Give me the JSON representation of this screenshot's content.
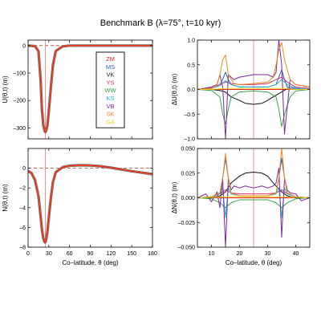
{
  "figure": {
    "title": "Benchmark B (λ=75°, t=10 kyr)"
  },
  "legend": [
    {
      "label": "ZM",
      "color": "#e8262a"
    },
    {
      "label": "MS",
      "color": "#2c5dbf"
    },
    {
      "label": "VK",
      "color": "#111111"
    },
    {
      "label": "YS",
      "color": "#d1306f"
    },
    {
      "label": "WW",
      "color": "#3aa34a"
    },
    {
      "label": "KS",
      "color": "#28b4d0"
    },
    {
      "label": "VB",
      "color": "#7a2a96"
    },
    {
      "label": "SK",
      "color": "#f08a1c"
    },
    {
      "label": "GA",
      "color": "#e8d21e"
    }
  ],
  "chart_data": [
    {
      "type": "line",
      "panel": "top-left",
      "xlabel": "",
      "ylabel": "U(θ,t) (m)",
      "xlim": [
        0,
        180
      ],
      "ylim": [
        -340,
        20
      ],
      "xticks": [
        0,
        30,
        60,
        90,
        120,
        150,
        180
      ],
      "yticks": [
        0,
        -100,
        -200,
        -300
      ],
      "xtick_labels_visible": false,
      "marker_line_x": 25,
      "zero_line": true,
      "series": [
        {
          "x": [
            0,
            10,
            15,
            18,
            20,
            22,
            24,
            25,
            26,
            28,
            30,
            33,
            36,
            40,
            50,
            60,
            90,
            120,
            150,
            180
          ],
          "y": [
            0,
            -2,
            -20,
            -120,
            -230,
            -290,
            -312,
            -315,
            -312,
            -290,
            -240,
            -150,
            -70,
            -20,
            -3,
            0,
            0,
            0,
            0,
            0
          ]
        }
      ]
    },
    {
      "type": "line",
      "panel": "bottom-left",
      "xlabel": "Co–latitude, θ (deg)",
      "ylabel": "N(θ,t) (m)",
      "xlim": [
        0,
        180
      ],
      "ylim": [
        -8,
        2
      ],
      "xticks": [
        0,
        30,
        60,
        90,
        120,
        150,
        180
      ],
      "yticks": [
        0,
        -2,
        -4,
        -6,
        -8
      ],
      "marker_line_x": 25,
      "zero_line": true,
      "series": [
        {
          "x": [
            0,
            5,
            10,
            15,
            18,
            20,
            22,
            24,
            25,
            26,
            28,
            30,
            33,
            36,
            40,
            50,
            60,
            75,
            90,
            105,
            120,
            150,
            180
          ],
          "y": [
            -0.3,
            -0.5,
            -1.2,
            -2.8,
            -4.8,
            -6.2,
            -7.1,
            -7.5,
            -7.5,
            -7.3,
            -6.4,
            -5.0,
            -3.0,
            -1.4,
            -0.4,
            0.1,
            0.25,
            0.3,
            0.28,
            0.2,
            0.05,
            -0.3,
            -0.6
          ]
        }
      ]
    },
    {
      "type": "line",
      "panel": "top-right",
      "xlabel": "",
      "ylabel": "ΔU(θ,t) (m)",
      "xlim": [
        5,
        45
      ],
      "ylim": [
        -1.0,
        1.0
      ],
      "xticks": [
        10,
        20,
        30,
        40
      ],
      "yticks": [
        1.0,
        0.5,
        0.0,
        -0.5,
        -1.0
      ],
      "xtick_labels_visible": false,
      "marker_line_x": 25,
      "series": [
        {
          "name": "ZM",
          "x": [
            5,
            12,
            15,
            20,
            25,
            30,
            35,
            40,
            45
          ],
          "y": [
            0,
            0,
            0,
            0,
            0,
            0,
            0,
            0,
            0
          ]
        },
        {
          "name": "MS",
          "x": [
            5,
            10,
            13,
            14,
            15,
            16,
            17,
            20,
            25,
            30,
            33,
            34,
            35,
            36,
            37,
            40,
            45
          ],
          "y": [
            0,
            0.02,
            0.1,
            0.2,
            0.35,
            0.2,
            0.1,
            0.05,
            0.05,
            0.05,
            0.1,
            0.25,
            0.4,
            0.2,
            0.05,
            0.02,
            0
          ]
        },
        {
          "name": "VK",
          "x": [
            5,
            10,
            13,
            15,
            17,
            20,
            22,
            25,
            28,
            30,
            32,
            35,
            37,
            40,
            45
          ],
          "y": [
            0,
            0,
            -0.02,
            -0.05,
            -0.15,
            -0.22,
            -0.28,
            -0.3,
            -0.28,
            -0.22,
            -0.15,
            -0.05,
            0.02,
            0,
            0
          ]
        },
        {
          "name": "YS",
          "x": [
            5,
            10,
            13,
            15,
            17,
            20,
            25,
            30,
            33,
            35,
            37,
            40,
            45
          ],
          "y": [
            0,
            0.03,
            0.1,
            0.15,
            0.12,
            0.1,
            0.1,
            0.12,
            0.2,
            0.25,
            0.15,
            0.05,
            0.02
          ]
        },
        {
          "name": "WW",
          "x": [
            5,
            10,
            13,
            14,
            15,
            16,
            17,
            20,
            25,
            30,
            33,
            34,
            35,
            36,
            38,
            40,
            45
          ],
          "y": [
            0,
            -0.02,
            -0.15,
            -0.5,
            -0.7,
            -0.4,
            -0.15,
            -0.05,
            -0.03,
            -0.05,
            -0.15,
            -0.4,
            -0.75,
            -0.5,
            -0.15,
            -0.03,
            0
          ]
        },
        {
          "name": "KS",
          "x": [
            5,
            10,
            13,
            15,
            17,
            20,
            25,
            30,
            33,
            35,
            37,
            40,
            45
          ],
          "y": [
            0,
            0.02,
            0.08,
            0.18,
            0.1,
            0.05,
            0.05,
            0.05,
            0.1,
            0.2,
            0.1,
            0.03,
            0
          ]
        },
        {
          "name": "VB",
          "x": [
            5,
            10,
            12,
            13,
            14,
            15,
            16,
            18,
            20,
            25,
            30,
            32,
            33,
            34,
            35,
            36,
            38,
            40,
            45
          ],
          "y": [
            0,
            0.05,
            0.1,
            0.3,
            0.05,
            -1.0,
            0.3,
            0.2,
            0.25,
            0.3,
            0.3,
            0.25,
            0.35,
            1.0,
            0.5,
            -0.9,
            0.2,
            0.1,
            0.05
          ]
        },
        {
          "name": "SK",
          "x": [
            5,
            10,
            12,
            13,
            14,
            15,
            16,
            18,
            20,
            25,
            30,
            32,
            33,
            34,
            35,
            36,
            38,
            40,
            45
          ],
          "y": [
            0,
            0.02,
            0.08,
            0.3,
            0.6,
            0.7,
            0.3,
            0.12,
            0.1,
            0.12,
            0.15,
            0.25,
            0.5,
            0.8,
            0.95,
            0.6,
            0.2,
            0.1,
            0.05
          ]
        },
        {
          "name": "GA",
          "x": [
            5,
            10,
            15,
            20,
            25,
            30,
            35,
            40,
            45
          ],
          "y": [
            0,
            0,
            0.02,
            0.02,
            0.02,
            0.02,
            0.02,
            0,
            0
          ]
        }
      ]
    },
    {
      "type": "line",
      "panel": "bottom-right",
      "xlabel": "Co–latitude, θ (deg)",
      "ylabel": "ΔN(θ,t) (m)",
      "xlim": [
        5,
        45
      ],
      "ylim": [
        -0.05,
        0.05
      ],
      "xticks": [
        10,
        20,
        30,
        40
      ],
      "yticks": [
        0.05,
        0.025,
        0.0,
        -0.025,
        -0.05
      ],
      "ytick_labels": [
        "0.050",
        "0.025",
        "0.000",
        "–0.025",
        "–0.050"
      ],
      "marker_line_x": 25,
      "series": [
        {
          "name": "ZM",
          "x": [
            5,
            15,
            25,
            35,
            45
          ],
          "y": [
            0,
            0,
            0,
            0,
            0
          ]
        },
        {
          "name": "MS",
          "x": [
            5,
            10,
            13,
            14,
            15,
            16,
            17,
            20,
            25,
            30,
            33,
            34,
            35,
            36,
            37,
            40,
            45
          ],
          "y": [
            0,
            0.001,
            0.005,
            0.02,
            0.04,
            0.02,
            0.005,
            0.002,
            0.002,
            0.002,
            0.005,
            0.02,
            0.04,
            0.02,
            0.005,
            0.001,
            0
          ]
        },
        {
          "name": "VK",
          "x": [
            5,
            10,
            13,
            15,
            17,
            20,
            22,
            25,
            28,
            30,
            32,
            35,
            37,
            40,
            45
          ],
          "y": [
            0,
            0,
            0.002,
            0.006,
            0.015,
            0.022,
            0.025,
            0.026,
            0.025,
            0.022,
            0.015,
            0.006,
            0.002,
            0,
            0
          ]
        },
        {
          "name": "YS",
          "x": [
            5,
            10,
            13,
            15,
            17,
            20,
            25,
            30,
            33,
            35,
            37,
            40,
            45
          ],
          "y": [
            0,
            0.001,
            0.004,
            0.008,
            0.005,
            0.004,
            0.004,
            0.004,
            0.005,
            0.008,
            0.004,
            0.001,
            0
          ]
        },
        {
          "name": "WW",
          "x": [
            5,
            10,
            13,
            15,
            17,
            20,
            25,
            30,
            33,
            35,
            37,
            40,
            45
          ],
          "y": [
            0,
            -0.001,
            -0.005,
            -0.01,
            -0.005,
            -0.002,
            -0.002,
            -0.002,
            -0.005,
            -0.01,
            -0.005,
            -0.001,
            0
          ]
        },
        {
          "name": "KS",
          "x": [
            5,
            10,
            13,
            14,
            15,
            16,
            17,
            20,
            25,
            30,
            33,
            34,
            35,
            36,
            37,
            40,
            45
          ],
          "y": [
            0,
            0.001,
            0.004,
            0.01,
            -0.02,
            0.01,
            0.004,
            0.002,
            0.002,
            0.002,
            0.004,
            0.01,
            -0.02,
            0.01,
            0.004,
            0.001,
            0
          ]
        },
        {
          "name": "VB",
          "x": [
            5,
            8,
            10,
            12,
            13,
            14,
            15,
            16,
            17,
            18,
            20,
            22,
            25,
            28,
            30,
            32,
            33,
            34,
            35,
            36,
            37,
            38,
            40,
            42,
            45
          ],
          "y": [
            0,
            0.004,
            -0.004,
            0.006,
            -0.01,
            0.02,
            -0.05,
            0.02,
            0.008,
            0.012,
            0.01,
            0.012,
            0.01,
            0.012,
            0.01,
            0.012,
            0.015,
            0.03,
            -0.04,
            0.02,
            0.008,
            0.005,
            0.004,
            -0.003,
            0
          ]
        },
        {
          "name": "SK",
          "x": [
            5,
            10,
            13,
            14,
            15,
            16,
            17,
            20,
            25,
            30,
            33,
            34,
            35,
            36,
            37,
            40,
            45
          ],
          "y": [
            0,
            0.001,
            0.005,
            0.02,
            0.045,
            0.02,
            0.005,
            0.002,
            0.002,
            0.002,
            0.005,
            0.02,
            0.05,
            0.02,
            0.005,
            0.001,
            0
          ]
        },
        {
          "name": "GA",
          "x": [
            5,
            15,
            25,
            35,
            45
          ],
          "y": [
            0,
            0.001,
            0.001,
            0.001,
            0
          ]
        }
      ]
    }
  ]
}
